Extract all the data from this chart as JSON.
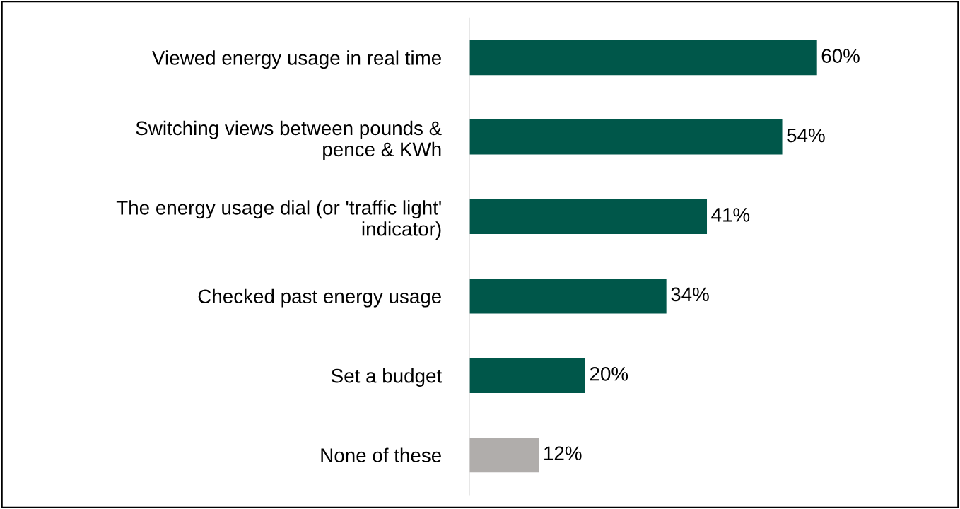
{
  "chart_data": {
    "type": "bar",
    "orientation": "horizontal",
    "categories": [
      "Viewed energy usage in real time",
      "Switching views between pounds &\npence & KWh",
      "The energy usage dial (or 'traffic light'\nindicator)",
      "Checked past energy usage",
      "Set a budget",
      "None of these"
    ],
    "values": [
      60,
      54,
      41,
      34,
      20,
      12
    ],
    "colors": [
      "#00574a",
      "#00574a",
      "#00574a",
      "#00574a",
      "#00574a",
      "#b0adab"
    ],
    "value_labels": [
      "60%",
      "54%",
      "41%",
      "34%",
      "20%",
      "12%"
    ],
    "grid": false,
    "legend": false
  }
}
